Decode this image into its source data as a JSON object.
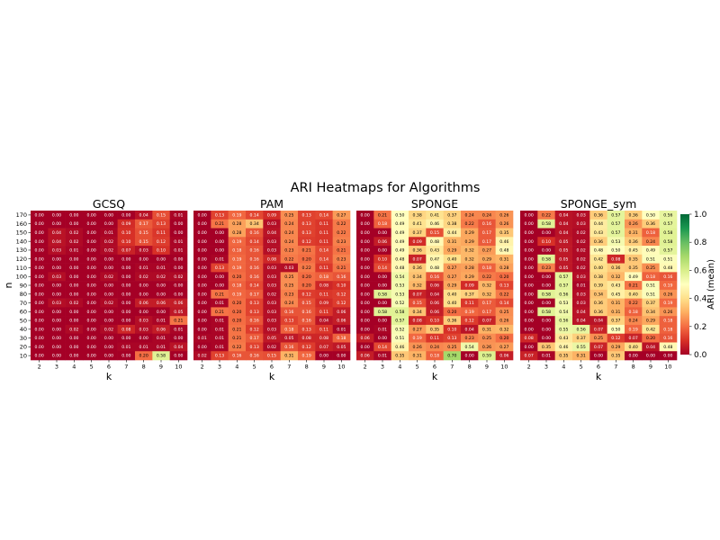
{
  "figure_title": "ARI Heatmaps for Algorithms",
  "chart_data": [
    {
      "type": "heatmap",
      "title": "GCSQ",
      "xlabel": "k",
      "ylabel": "n",
      "x": [
        2,
        3,
        4,
        5,
        6,
        7,
        8,
        9,
        10
      ],
      "y": [
        170,
        160,
        150,
        140,
        130,
        120,
        110,
        100,
        90,
        80,
        70,
        60,
        50,
        40,
        30,
        20,
        10
      ],
      "values": [
        [
          0.0,
          0.0,
          0.0,
          0.0,
          0.0,
          0.0,
          0.04,
          0.15,
          0.01
        ],
        [
          0.0,
          0.0,
          0.0,
          0.0,
          0.0,
          0.09,
          0.17,
          0.13,
          0.0
        ],
        [
          0.0,
          0.04,
          0.02,
          0.0,
          0.01,
          0.1,
          0.15,
          0.11,
          0.0
        ],
        [
          0.0,
          0.04,
          0.02,
          0.0,
          0.02,
          0.1,
          0.15,
          0.12,
          0.01
        ],
        [
          0.0,
          0.03,
          0.01,
          0.0,
          0.02,
          0.07,
          0.03,
          0.1,
          0.01
        ],
        [
          0.0,
          0.0,
          0.0,
          0.0,
          0.0,
          0.0,
          0.0,
          0.0,
          0.0
        ],
        [
          0.0,
          0.0,
          0.0,
          0.0,
          0.0,
          0.0,
          0.01,
          0.01,
          0.0
        ],
        [
          0.0,
          0.03,
          0.0,
          0.0,
          0.02,
          0.0,
          0.02,
          0.02,
          0.02
        ],
        [
          0.0,
          0.0,
          0.0,
          0.0,
          0.0,
          0.0,
          0.0,
          0.0,
          0.0
        ],
        [
          0.0,
          0.0,
          0.0,
          0.0,
          0.0,
          0.0,
          0.0,
          0.0,
          0.0
        ],
        [
          0.0,
          0.03,
          0.02,
          0.0,
          0.02,
          0.0,
          0.06,
          0.06,
          0.06
        ],
        [
          0.0,
          0.0,
          0.0,
          0.0,
          0.0,
          0.0,
          0.0,
          0.0,
          0.05
        ],
        [
          0.0,
          0.0,
          0.0,
          0.0,
          0.0,
          0.0,
          0.03,
          0.01,
          0.21
        ],
        [
          0.0,
          0.0,
          0.02,
          0.0,
          0.02,
          0.08,
          0.03,
          0.06,
          0.01
        ],
        [
          0.0,
          0.0,
          0.0,
          0.0,
          0.0,
          0.0,
          0.0,
          0.01,
          0.0
        ],
        [
          0.0,
          0.0,
          0.0,
          0.0,
          0.0,
          0.01,
          0.01,
          0.01,
          0.04
        ],
        [
          0.0,
          0.0,
          0.0,
          0.0,
          0.0,
          0.0,
          0.2,
          0.58,
          0.0
        ]
      ],
      "colorbar": null
    },
    {
      "type": "heatmap",
      "title": "PAM",
      "xlabel": "k",
      "ylabel": "",
      "x": [
        2,
        3,
        4,
        5,
        6,
        7,
        8,
        9,
        10
      ],
      "y": [
        170,
        160,
        150,
        140,
        130,
        120,
        110,
        100,
        90,
        80,
        70,
        60,
        50,
        40,
        30,
        20,
        10
      ],
      "values": [
        [
          0.0,
          0.13,
          0.19,
          0.14,
          0.09,
          0.25,
          0.13,
          0.14,
          0.27
        ],
        [
          0.0,
          0.21,
          0.28,
          0.34,
          0.03,
          0.24,
          0.13,
          0.11,
          0.22
        ],
        [
          0.0,
          0.0,
          0.28,
          0.16,
          0.04,
          0.24,
          0.13,
          0.11,
          0.22
        ],
        [
          0.0,
          0.0,
          0.19,
          0.14,
          0.03,
          0.24,
          0.12,
          0.11,
          0.23
        ],
        [
          0.0,
          0.0,
          0.18,
          0.16,
          0.03,
          0.23,
          0.21,
          0.14,
          0.21
        ],
        [
          0.0,
          0.01,
          0.19,
          0.16,
          0.08,
          0.22,
          0.2,
          0.14,
          0.23
        ],
        [
          0.0,
          0.13,
          0.19,
          0.16,
          0.03,
          0.03,
          0.22,
          0.11,
          0.21
        ],
        [
          0.0,
          0.0,
          0.2,
          0.16,
          0.03,
          0.25,
          0.2,
          0.18,
          0.16
        ],
        [
          0.0,
          0.0,
          0.18,
          0.14,
          0.03,
          0.25,
          0.2,
          0.08,
          0.1
        ],
        [
          0.0,
          0.21,
          0.19,
          0.17,
          0.02,
          0.23,
          0.12,
          0.11,
          0.12
        ],
        [
          0.0,
          0.01,
          0.2,
          0.13,
          0.03,
          0.24,
          0.15,
          0.09,
          0.12
        ],
        [
          0.0,
          0.21,
          0.2,
          0.13,
          0.03,
          0.16,
          0.16,
          0.11,
          0.06
        ],
        [
          0.0,
          0.01,
          0.2,
          0.16,
          0.03,
          0.13,
          0.16,
          0.04,
          0.06
        ],
        [
          0.0,
          0.01,
          0.21,
          0.12,
          0.03,
          0.18,
          0.13,
          0.11,
          0.01
        ],
        [
          0.01,
          0.01,
          0.21,
          0.17,
          0.05,
          0.05,
          0.08,
          0.08,
          0.18
        ],
        [
          0.0,
          0.01,
          0.22,
          0.13,
          0.02,
          0.16,
          0.12,
          0.07,
          0.05
        ],
        [
          0.02,
          0.13,
          0.16,
          0.16,
          0.15,
          0.31,
          0.19,
          0.0,
          0.0
        ]
      ],
      "colorbar": null
    },
    {
      "type": "heatmap",
      "title": "SPONGE",
      "xlabel": "k",
      "ylabel": "",
      "x": [
        2,
        3,
        4,
        5,
        6,
        7,
        8,
        9,
        10
      ],
      "y": [
        170,
        160,
        150,
        140,
        130,
        120,
        110,
        100,
        90,
        80,
        70,
        60,
        50,
        40,
        30,
        20,
        10
      ],
      "values": [
        [
          0.0,
          0.21,
          0.5,
          0.38,
          0.41,
          0.37,
          0.24,
          0.24,
          0.26
        ],
        [
          0.0,
          0.18,
          0.49,
          0.41,
          0.46,
          0.38,
          0.22,
          0.16,
          0.26
        ],
        [
          0.0,
          0.0,
          0.49,
          0.37,
          0.15,
          0.44,
          0.29,
          0.17,
          0.35
        ],
        [
          0.0,
          0.06,
          0.49,
          0.09,
          0.48,
          0.31,
          0.29,
          0.17,
          0.46
        ],
        [
          0.0,
          0.0,
          0.49,
          0.36,
          0.43,
          0.29,
          0.32,
          0.27,
          0.48
        ],
        [
          0.0,
          0.1,
          0.48,
          0.07,
          0.47,
          0.4,
          0.32,
          0.29,
          0.31
        ],
        [
          0.0,
          0.14,
          0.48,
          0.36,
          0.48,
          0.27,
          0.28,
          0.18,
          0.28
        ],
        [
          0.0,
          0.0,
          0.54,
          0.34,
          0.16,
          0.27,
          0.29,
          0.22,
          0.2
        ],
        [
          0.0,
          0.0,
          0.53,
          0.32,
          0.06,
          0.29,
          0.09,
          0.32,
          0.13
        ],
        [
          0.0,
          0.58,
          0.53,
          0.07,
          0.04,
          0.4,
          0.37,
          0.32,
          0.22
        ],
        [
          0.0,
          0.0,
          0.52,
          0.15,
          0.06,
          0.4,
          0.11,
          0.17,
          0.14
        ],
        [
          0.0,
          0.58,
          0.58,
          0.34,
          0.06,
          0.2,
          0.19,
          0.17,
          0.25
        ],
        [
          0.0,
          0.0,
          0.57,
          0.08,
          0.1,
          0.36,
          0.12,
          0.07,
          0.26
        ],
        [
          0.0,
          0.01,
          0.52,
          0.27,
          0.35,
          0.1,
          0.04,
          0.31,
          0.32
        ],
        [
          0.06,
          0.0,
          0.51,
          0.19,
          0.11,
          0.13,
          0.23,
          0.25,
          0.2
        ],
        [
          0.0,
          0.14,
          0.46,
          0.26,
          0.24,
          0.25,
          0.54,
          0.26,
          0.27
        ],
        [
          0.06,
          0.01,
          0.35,
          0.31,
          0.18,
          0.7,
          0.0,
          0.59,
          0.06
        ]
      ],
      "colorbar": null
    },
    {
      "type": "heatmap",
      "title": "SPONGE_sym",
      "xlabel": "k",
      "ylabel": "",
      "x": [
        2,
        3,
        4,
        5,
        6,
        7,
        8,
        9,
        10
      ],
      "y": [
        170,
        160,
        150,
        140,
        130,
        120,
        110,
        100,
        90,
        80,
        70,
        60,
        50,
        40,
        30,
        20,
        10
      ],
      "values": [
        [
          0.0,
          0.22,
          0.04,
          0.03,
          0.36,
          0.57,
          0.36,
          0.5,
          0.56
        ],
        [
          0.0,
          0.58,
          0.04,
          0.03,
          0.44,
          0.57,
          0.26,
          0.36,
          0.57
        ],
        [
          0.0,
          0.0,
          0.04,
          0.02,
          0.43,
          0.57,
          0.31,
          0.18,
          0.58
        ],
        [
          0.0,
          0.1,
          0.05,
          0.02,
          0.36,
          0.53,
          0.36,
          0.24,
          0.58
        ],
        [
          0.0,
          0.0,
          0.05,
          0.02,
          0.48,
          0.5,
          0.45,
          0.49,
          0.57
        ],
        [
          0.0,
          0.58,
          0.05,
          0.02,
          0.42,
          0.08,
          0.35,
          0.51,
          0.51
        ],
        [
          0.0,
          0.23,
          0.05,
          0.02,
          0.4,
          0.36,
          0.35,
          0.25,
          0.48
        ],
        [
          0.0,
          0.0,
          0.57,
          0.03,
          0.38,
          0.32,
          0.49,
          0.18,
          0.16
        ],
        [
          0.0,
          0.0,
          0.57,
          0.01,
          0.39,
          0.43,
          0.21,
          0.51,
          0.19
        ],
        [
          0.0,
          0.58,
          0.56,
          0.03,
          0.34,
          0.45,
          0.4,
          0.51,
          0.26
        ],
        [
          0.0,
          0.0,
          0.53,
          0.03,
          0.36,
          0.31,
          0.22,
          0.37,
          0.19
        ],
        [
          0.0,
          0.58,
          0.54,
          0.04,
          0.36,
          0.31,
          0.18,
          0.34,
          0.26
        ],
        [
          0.0,
          0.0,
          0.56,
          0.04,
          0.04,
          0.37,
          0.24,
          0.29,
          0.18
        ],
        [
          0.0,
          0.0,
          0.55,
          0.56,
          0.07,
          0.5,
          0.19,
          0.42,
          0.18
        ],
        [
          0.08,
          0.0,
          0.43,
          0.37,
          0.25,
          0.12,
          0.07,
          0.2,
          0.16
        ],
        [
          0.0,
          0.35,
          0.46,
          0.55,
          0.07,
          0.29,
          0.4,
          0.04,
          0.48
        ],
        [
          0.07,
          0.01,
          0.35,
          0.31,
          0.0,
          0.35,
          0.0,
          0.0,
          0.0
        ]
      ],
      "colorbar": {
        "label": "ARI (mean)",
        "min": 0.0,
        "max": 1.0,
        "ticks": [
          "0.0",
          "0.2",
          "0.4",
          "0.6",
          "0.8",
          "1.0"
        ],
        "colormap": "RdYlGn",
        "stops": [
          "#a50026",
          "#d73027",
          "#f46d43",
          "#fdae61",
          "#fee08b",
          "#ffffbf",
          "#d9ef8b",
          "#a6d96a",
          "#66bd63",
          "#1a9850",
          "#006837"
        ]
      }
    }
  ]
}
